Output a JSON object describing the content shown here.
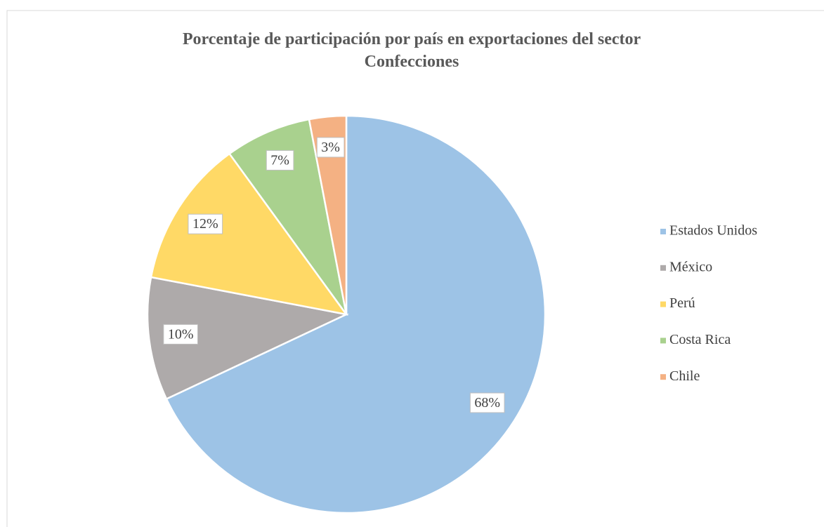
{
  "chart_data": {
    "type": "pie",
    "title": "Porcentaje de participación por país en exportaciones del sector Confecciones",
    "categories": [
      "Estados Unidos",
      "México",
      "Perú",
      "Costa Rica",
      "Chile"
    ],
    "values": [
      68,
      10,
      12,
      7,
      3
    ],
    "value_labels": [
      "68%",
      "10%",
      "12%",
      "7%",
      "3%"
    ],
    "colors": [
      "#9dc3e6",
      "#aeaaaa",
      "#ffd966",
      "#a9d18e",
      "#f4b183"
    ],
    "legend": "right"
  }
}
